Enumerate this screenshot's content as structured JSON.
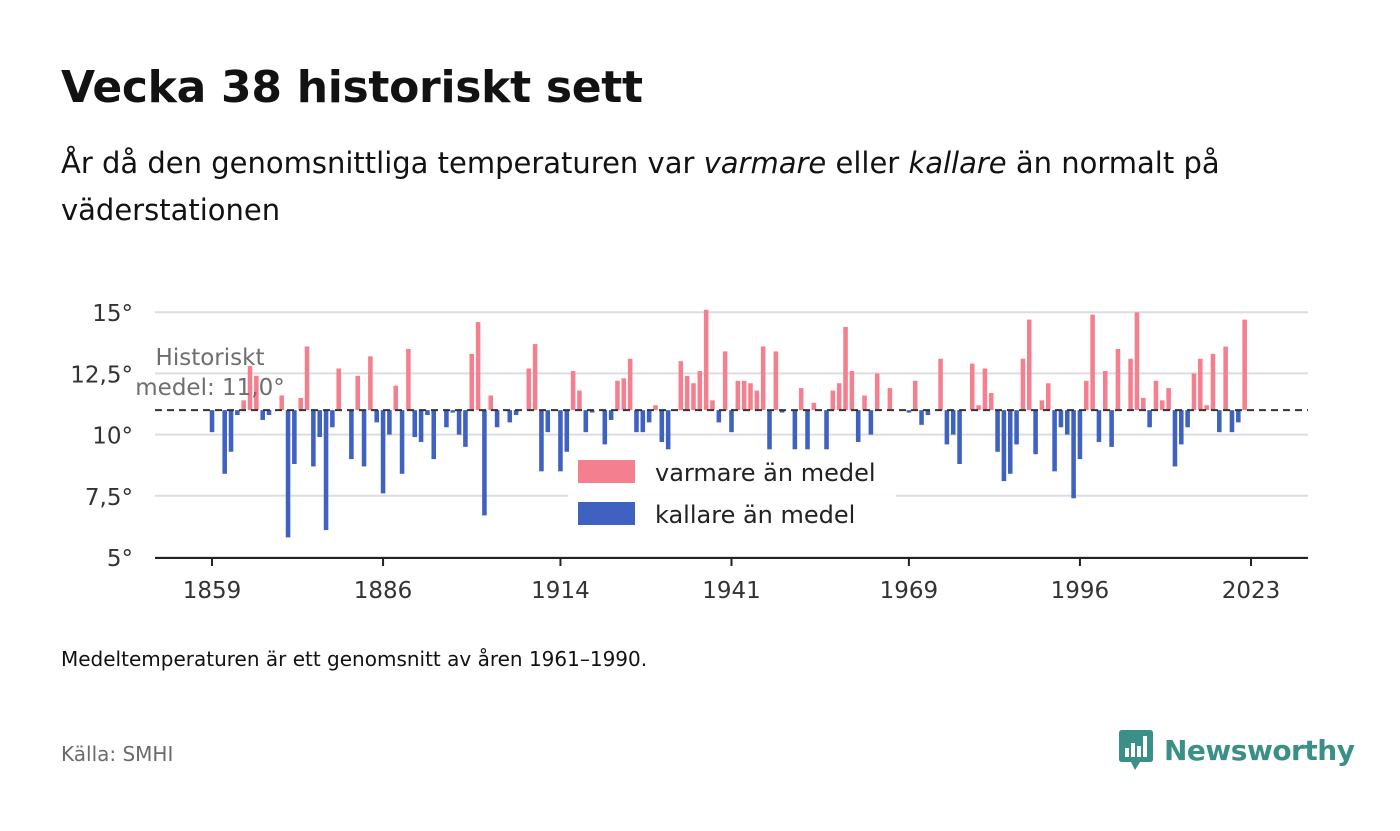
{
  "header": {
    "title": "Vecka 38 historiskt sett",
    "subtitle_pre": "År då den genomsnittliga temperaturen var ",
    "subtitle_warm": "varmare",
    "subtitle_mid": " eller ",
    "subtitle_cold": "kallare",
    "subtitle_post": " än normalt på väderstationen"
  },
  "footer": {
    "note": "Medeltemperaturen är ett genomsnitt av åren 1961–1990.",
    "source": "Källa: SMHI"
  },
  "brand": {
    "name": "Newsworthy",
    "icon": "bar-chart-speech-icon",
    "color": "#3a8f86"
  },
  "chart_data": {
    "type": "bar",
    "baseline": 11.0,
    "baseline_label": "Historiskt medel: 11,0°",
    "ylim": [
      5,
      15.5
    ],
    "yticks": [
      5,
      7.5,
      10,
      12.5,
      15
    ],
    "ytick_labels": [
      "5°",
      "7,5°",
      "10°",
      "12,5°",
      "15°"
    ],
    "xticks": [
      1859,
      1886,
      1914,
      1941,
      1969,
      1996,
      2023
    ],
    "xlim": [
      1850,
      2032
    ],
    "grid": true,
    "legend": [
      {
        "label": "varmare än medel",
        "color": "#f4808f"
      },
      {
        "label": "kallare än medel",
        "color": "#3f61c0"
      }
    ],
    "legend_position": "bottom-center",
    "colors": {
      "warm": "#f4808f",
      "cold": "#3f61c0"
    },
    "first_year": 1859,
    "values": [
      10.1,
      11,
      8.4,
      9.3,
      10.8,
      11.4,
      12.8,
      12.4,
      10.6,
      10.8,
      11,
      11.6,
      5.8,
      8.8,
      11.5,
      13.6,
      8.7,
      9.9,
      6.1,
      10.3,
      12.7,
      11,
      9,
      12.4,
      8.7,
      13.2,
      10.5,
      7.6,
      10,
      12,
      8.4,
      13.5,
      9.9,
      9.7,
      10.8,
      9,
      11,
      10.3,
      10.9,
      10,
      9.5,
      13.3,
      14.6,
      6.7,
      11.6,
      10.3,
      11,
      10.5,
      10.8,
      11,
      12.7,
      13.7,
      8.5,
      10.1,
      11,
      8.5,
      9.3,
      12.6,
      11.8,
      10.1,
      10.9,
      11,
      9.6,
      10.6,
      12.2,
      12.3,
      13.1,
      10.1,
      10.1,
      10.5,
      11.2,
      9.7,
      9.4,
      11,
      13,
      12.4,
      12.1,
      12.6,
      15.1,
      11.4,
      10.5,
      13.4,
      10.1,
      12.2,
      12.2,
      12.1,
      11.8,
      13.6,
      9.4,
      13.4,
      10.9,
      11,
      9.4,
      11.9,
      9.4,
      11.3,
      11,
      9.4,
      11.8,
      12.1,
      14.4,
      12.6,
      9.7,
      11.6,
      10,
      12.5,
      11,
      11.9,
      11,
      11,
      10.9,
      12.2,
      10.4,
      10.8,
      11,
      13.1,
      9.6,
      10,
      8.8,
      11,
      12.9,
      11.2,
      12.7,
      11.7,
      9.3,
      8.1,
      8.4,
      9.6,
      13.1,
      14.7,
      9.2,
      11.4,
      12.1,
      8.5,
      10.3,
      10,
      7.4,
      9,
      12.2,
      14.9,
      9.7,
      12.6,
      9.5,
      13.5,
      11,
      13.1,
      15,
      11.5,
      10.3,
      12.2,
      11.4,
      11.9,
      8.7,
      9.6,
      10.3,
      12.5,
      13.1,
      11.2,
      13.3,
      10.1,
      13.6,
      10.1,
      10.5,
      14.7
    ]
  }
}
